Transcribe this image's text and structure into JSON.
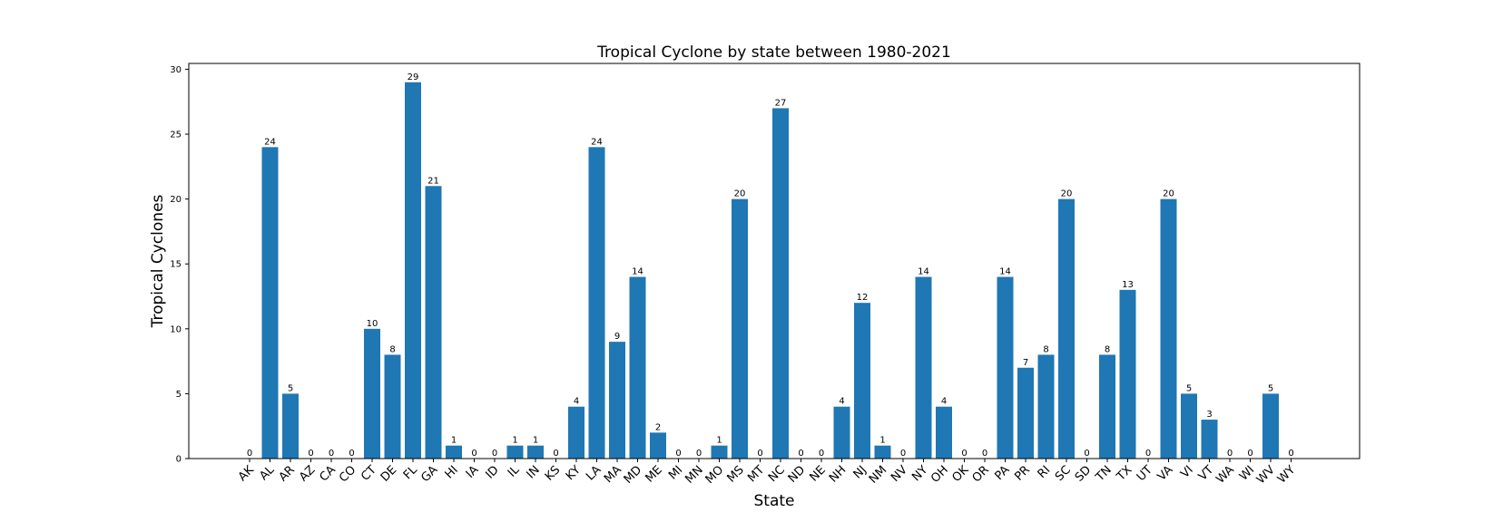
{
  "chart_data": {
    "type": "bar",
    "title": "Tropical Cyclone by state between 1980-2021",
    "xlabel": "State",
    "ylabel": "Tropical Cyclones",
    "categories": [
      "AK",
      "AL",
      "AR",
      "AZ",
      "CA",
      "CO",
      "CT",
      "DE",
      "FL",
      "GA",
      "HI",
      "IA",
      "ID",
      "IL",
      "IN",
      "KS",
      "KY",
      "LA",
      "MA",
      "MD",
      "ME",
      "MI",
      "MN",
      "MO",
      "MS",
      "MT",
      "NC",
      "ND",
      "NE",
      "NH",
      "NJ",
      "NM",
      "NV",
      "NY",
      "OH",
      "OK",
      "OR",
      "PA",
      "PR",
      "RI",
      "SC",
      "SD",
      "TN",
      "TX",
      "UT",
      "VA",
      "VI",
      "VT",
      "WA",
      "WI",
      "WV",
      "WY"
    ],
    "values": [
      0,
      24,
      5,
      0,
      0,
      0,
      10,
      8,
      29,
      21,
      1,
      0,
      0,
      1,
      1,
      0,
      4,
      24,
      9,
      14,
      2,
      0,
      0,
      1,
      20,
      0,
      27,
      0,
      0,
      4,
      12,
      1,
      0,
      14,
      4,
      0,
      0,
      14,
      7,
      8,
      20,
      0,
      8,
      13,
      0,
      20,
      5,
      3,
      0,
      0,
      5,
      0
    ],
    "ylim": [
      0,
      30.45
    ],
    "yticks": [
      0,
      5,
      10,
      15,
      20,
      25,
      30
    ],
    "grid": false,
    "legend": "none",
    "bar_color": "#1f77b4"
  }
}
